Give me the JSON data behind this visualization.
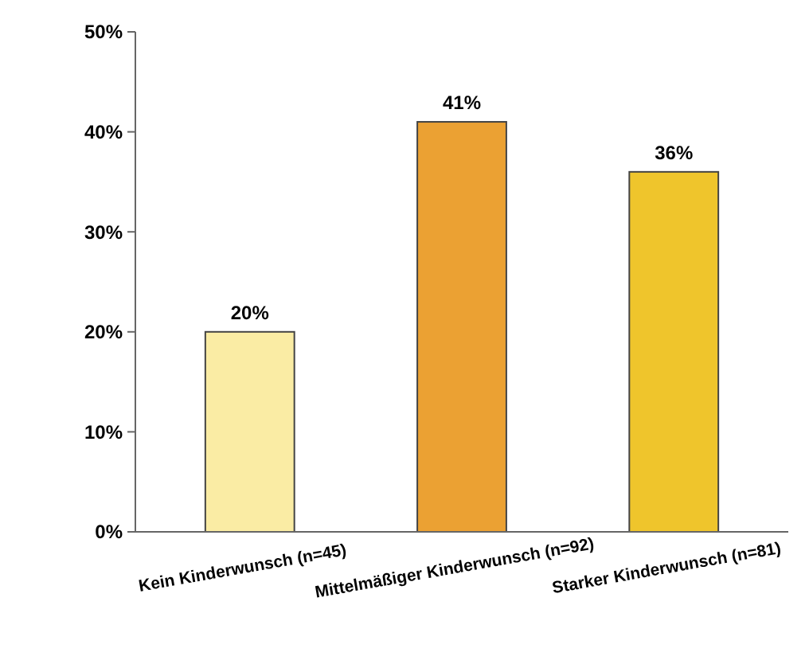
{
  "chart_data": {
    "type": "bar",
    "categories": [
      "Kein Kinderwunsch (n=45)",
      "Mittelmäßiger Kinderwunsch (n=92)",
      "Starker Kinderwunsch (n=81)"
    ],
    "values": [
      20,
      41,
      36
    ],
    "colors": [
      "#faeca4",
      "#eba133",
      "#efc52c"
    ],
    "ylim": [
      0,
      50
    ],
    "yticks": [
      {
        "value": 0,
        "label": "0%"
      },
      {
        "value": 10,
        "label": "10%"
      },
      {
        "value": 20,
        "label": "20%"
      },
      {
        "value": 30,
        "label": "30%"
      },
      {
        "value": 40,
        "label": "40%"
      },
      {
        "value": 50,
        "label": "50%"
      }
    ],
    "value_labels": [
      "20%",
      "41%",
      "36%"
    ],
    "grid": false
  }
}
